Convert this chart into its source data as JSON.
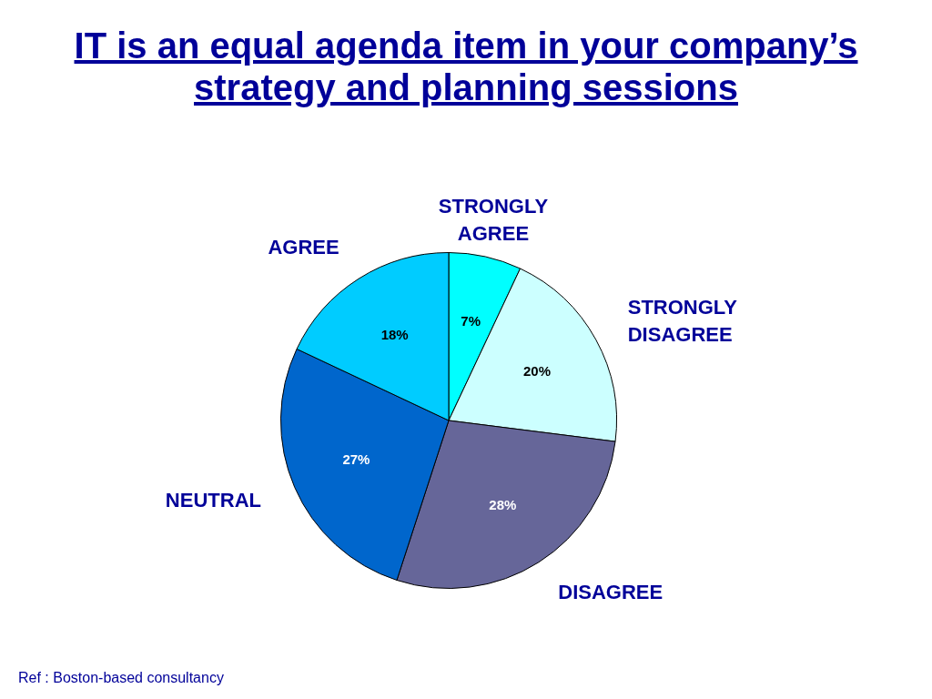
{
  "chart_data": {
    "type": "pie",
    "title": "IT is an equal agenda item in your company’s strategy and planning sessions",
    "categories": [
      "STRONGLY AGREE",
      "STRONGLY DISAGREE",
      "DISAGREE",
      "NEUTRAL",
      "AGREE"
    ],
    "values": [
      7,
      20,
      28,
      27,
      18
    ],
    "colors": [
      "#00ffff",
      "#ccffff",
      "#666699",
      "#0066cc",
      "#00ccff"
    ],
    "value_labels": [
      "7%",
      "20%",
      "28%",
      "27%",
      "18%"
    ],
    "legend": false,
    "annotations": [
      "Ref : Boston-based consultancy"
    ]
  }
}
